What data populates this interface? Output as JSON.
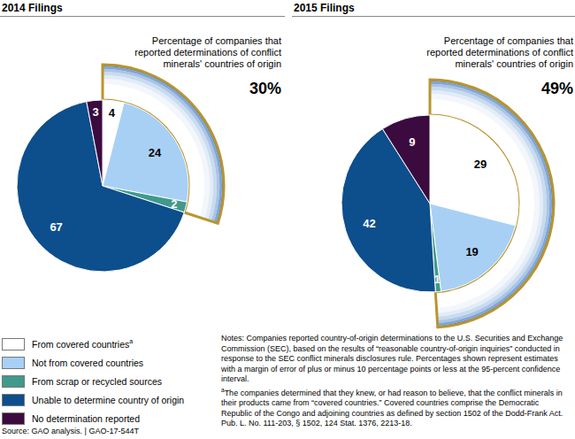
{
  "chart_data": [
    {
      "type": "pie",
      "title": "2014 Filings",
      "categories": [
        "From covered countries",
        "Not from covered countries",
        "From scrap or recycled sources",
        "Unable to determine country of origin",
        "No determination reported"
      ],
      "category_notes": [
        "a",
        null,
        null,
        null,
        null
      ],
      "values": [
        4,
        24,
        2,
        67,
        3
      ],
      "colors": [
        "#ffffff",
        "#a8d0f5",
        "#3f9a8c",
        "#0d4e8d",
        "#3b0b3f"
      ],
      "data_labels": true,
      "annotation": {
        "text": "Percentage of companies that reported determinations of conflict minerals' countries of origin",
        "value": 30,
        "label": "30%"
      }
    },
    {
      "type": "pie",
      "title": "2015 Filings",
      "categories": [
        "From covered countries",
        "Not from covered countries",
        "From scrap or recycled sources",
        "Unable to determine country of origin",
        "No determination reported"
      ],
      "values": [
        29,
        19,
        1,
        42,
        9
      ],
      "colors": [
        "#ffffff",
        "#a8d0f5",
        "#3f9a8c",
        "#0d4e8d",
        "#3b0b3f"
      ],
      "data_labels": true,
      "annotation": {
        "text": "Percentage of companies that reported determinations of conflict minerals' countries of origin",
        "value": 49,
        "label": "49%"
      }
    }
  ],
  "notes": "Notes: Companies reported country-of-origin determinations to the U.S. Securities and Exchange Commission (SEC), based on the results of “reasonable country-of-origin inquiries” conducted in response to the SEC conflict minerals disclosures rule. Percentages shown represent estimates with a margin of error of plus or minus 10 percentage points or less at the 95-percent confidence interval.",
  "footnote": {
    "mark": "a",
    "text": "The companies determined that they knew, or had reason to believe, that the conflict minerals in their products came from “covered countries.” Covered countries comprise the Democratic Republic of the Congo and adjoining countries as defined by section 1502 of the Dodd-Frank Act. Pub. L. No. 111-203, § 1502, 124 Stat. 1376, 2213-18."
  },
  "source": "Source: GAO analysis. | GAO-17-544T"
}
